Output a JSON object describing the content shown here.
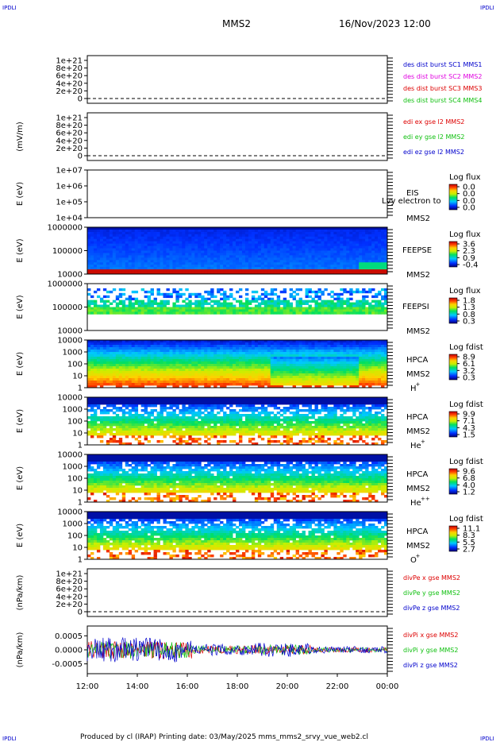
{
  "corners": {
    "tl": "IPDLI",
    "tr": "IPDLI",
    "bl": "IPDLI",
    "br": "IPDLI"
  },
  "header": {
    "title": "MMS2",
    "datetime": "16/Nov/2023 12:00"
  },
  "footer": {
    "text": "Produced by cl (IRAP)   Printing date: 03/May/2025   mms_mms2_srvy_vue_web2.cl"
  },
  "colors": {
    "red": "#dd0000",
    "magenta": "#e000e0",
    "green": "#10c010",
    "blue": "#0000cc",
    "black": "#000000"
  },
  "time_axis": {
    "ticks": [
      "12:00",
      "14:00",
      "16:00",
      "18:00",
      "20:00",
      "22:00",
      "00:00"
    ],
    "range_hours": [
      12,
      24
    ]
  },
  "chart_data": [
    {
      "type": "line",
      "id": "p1",
      "ylabel": "",
      "yticks": [
        "1e+21",
        "8e+20",
        "6e+20",
        "4e+20",
        "2e+20",
        "0"
      ],
      "legend": [
        {
          "text": "des dist burst SC1 MMS1",
          "color": "#0000cc"
        },
        {
          "text": "des dist burst SC2 MMS2",
          "color": "#e000e0"
        },
        {
          "text": "des dist burst SC3 MMS3",
          "color": "#dd0000"
        },
        {
          "text": "des dist burst SC4 MMS4",
          "color": "#10c010"
        }
      ]
    },
    {
      "type": "line",
      "id": "p2",
      "ylabel": "(mV/m)",
      "yticks": [
        "1e+21",
        "8e+20",
        "6e+20",
        "4e+20",
        "2e+20",
        "0"
      ],
      "legend": [
        {
          "text": "edi ex gse l2 MMS2",
          "color": "#dd0000"
        },
        {
          "text": "edi ey gse l2 MMS2",
          "color": "#10c010"
        },
        {
          "text": "edi ez gse l2 MMS2",
          "color": "#0000cc"
        }
      ]
    },
    {
      "type": "heatmap",
      "id": "p3",
      "ylabel": "E (eV)",
      "yticks": [
        "1e+07",
        "1e+06",
        "1e+05",
        "1e+04"
      ],
      "labels": [
        "EIS",
        "MMS2"
      ],
      "overlay": "Lvy electron to",
      "cbar_title": "Log flux",
      "cbar_ticks": [
        "0.0",
        "0.0",
        "0.0",
        "0.0"
      ]
    },
    {
      "type": "heatmap",
      "id": "p4",
      "ylabel": "E (eV)",
      "yticks": [
        "1000000",
        "100000",
        "10000"
      ],
      "labels": [
        "FEEPSE",
        "MMS2"
      ],
      "cbar_title": "Log flux",
      "cbar_ticks": [
        "3.6",
        "2.3",
        "0.9",
        "-0.4"
      ]
    },
    {
      "type": "heatmap",
      "id": "p5",
      "ylabel": "E (eV)",
      "yticks": [
        "1000000",
        "100000",
        "10000"
      ],
      "labels": [
        "FEEPSI",
        "MMS2"
      ],
      "cbar_title": "Log flux",
      "cbar_ticks": [
        "1.8",
        "1.3",
        "0.8",
        "0.3"
      ]
    },
    {
      "type": "heatmap",
      "id": "p6",
      "ylabel": "E (eV)",
      "yticks": [
        "10000",
        "1000",
        "100",
        "10",
        "1"
      ],
      "labels": [
        "HPCA",
        "MMS2"
      ],
      "species": "H",
      "charge": "+",
      "cbar_title": "Log fdist",
      "cbar_ticks": [
        "8.9",
        "6.1",
        "3.2",
        "0.3"
      ]
    },
    {
      "type": "heatmap",
      "id": "p7",
      "ylabel": "E (eV)",
      "yticks": [
        "10000",
        "1000",
        "100",
        "10",
        "1"
      ],
      "labels": [
        "HPCA",
        "MMS2"
      ],
      "species": "He",
      "charge": "+",
      "cbar_title": "Log fdist",
      "cbar_ticks": [
        "9.9",
        "7.1",
        "4.3",
        "1.5"
      ]
    },
    {
      "type": "heatmap",
      "id": "p8",
      "ylabel": "E (eV)",
      "yticks": [
        "10000",
        "1000",
        "100",
        "10",
        "1"
      ],
      "labels": [
        "HPCA",
        "MMS2"
      ],
      "species": "He",
      "charge": "++",
      "cbar_title": "Log fdist",
      "cbar_ticks": [
        "9.6",
        "6.8",
        "4.0",
        "1.2"
      ]
    },
    {
      "type": "heatmap",
      "id": "p9",
      "ylabel": "E (eV)",
      "yticks": [
        "10000",
        "1000",
        "100",
        "10",
        "1"
      ],
      "labels": [
        "HPCA",
        "MMS2"
      ],
      "species": "O",
      "charge": "+",
      "cbar_title": "Log fdist",
      "cbar_ticks": [
        "11.1",
        "8.3",
        "5.5",
        "2.7"
      ]
    },
    {
      "type": "line",
      "id": "p10",
      "ylabel": "(nPa/km)",
      "yticks": [
        "1e+21",
        "8e+20",
        "6e+20",
        "4e+20",
        "2e+20",
        "0"
      ],
      "legend": [
        {
          "text": "divPe x gse MMS2",
          "color": "#dd0000"
        },
        {
          "text": "divPe y gse MMS2",
          "color": "#10c010"
        },
        {
          "text": "divPe z gse MMS2",
          "color": "#0000cc"
        }
      ]
    },
    {
      "type": "line",
      "id": "p11",
      "ylabel": "(nPa/km)",
      "yticks": [
        "0.0005",
        "0.0000",
        "-0.0005"
      ],
      "ylim": [
        -0.00085,
        0.00085
      ],
      "legend": [
        {
          "text": "divPi x gse MMS2",
          "color": "#dd0000"
        },
        {
          "text": "divPi y gse MMS2",
          "color": "#10c010"
        },
        {
          "text": "divPi z gse MMS2",
          "color": "#0000cc"
        }
      ]
    }
  ]
}
